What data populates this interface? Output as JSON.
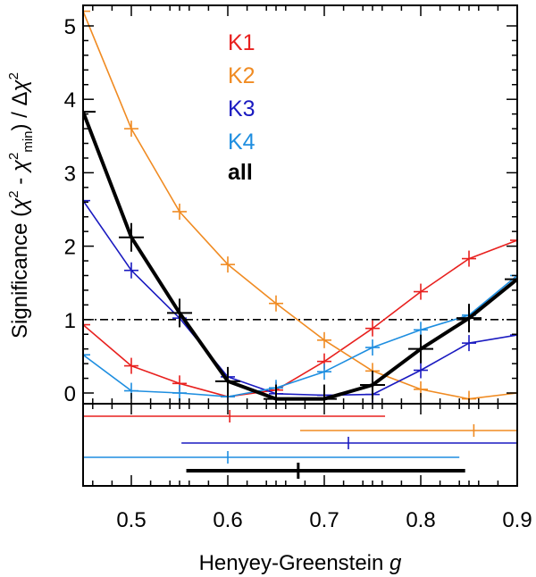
{
  "chart_data": {
    "type": "line",
    "xlabel": "Henyey-Greenstein",
    "xlabel_italic": "g",
    "ylabel": {
      "prefix": "Significance (",
      "chi1": "χ",
      "sup1": "2",
      "minus": " - ",
      "chi2": "χ",
      "sup2": "2",
      "sub": "min",
      "mid": ") / Δ",
      "chi3": "χ",
      "sup3": "2"
    },
    "xlim": [
      0.45,
      0.9
    ],
    "ylim": [
      -0.1,
      5.2
    ],
    "x_ticks": [
      {
        "value": 0.5,
        "label": "0.5"
      },
      {
        "value": 0.6,
        "label": "0.6"
      },
      {
        "value": 0.7,
        "label": "0.7"
      },
      {
        "value": 0.8,
        "label": "0.8"
      },
      {
        "value": 0.9,
        "label": "0.9"
      }
    ],
    "y_ticks": [
      {
        "value": 0,
        "label": "0"
      },
      {
        "value": 1,
        "label": "1"
      },
      {
        "value": 2,
        "label": "2"
      },
      {
        "value": 3,
        "label": "3"
      },
      {
        "value": 4,
        "label": "4"
      },
      {
        "value": 5,
        "label": "5"
      }
    ],
    "threshold": 1,
    "series": [
      {
        "name": "K1",
        "color": "#e8201e",
        "bold": false,
        "x": [
          0.45,
          0.5,
          0.55,
          0.6,
          0.65,
          0.7,
          0.75,
          0.8,
          0.85,
          0.9
        ],
        "y": [
          0.93,
          0.37,
          0.13,
          -0.05,
          0.04,
          0.43,
          0.88,
          1.38,
          1.83,
          2.08
        ]
      },
      {
        "name": "K2",
        "color": "#f08b22",
        "bold": false,
        "x": [
          0.45,
          0.5,
          0.55,
          0.6,
          0.65,
          0.7,
          0.75,
          0.8,
          0.85,
          0.9
        ],
        "y": [
          5.2,
          3.6,
          2.47,
          1.75,
          1.22,
          0.72,
          0.3,
          0.05,
          -0.08,
          0.0
        ]
      },
      {
        "name": "K3",
        "color": "#1a1ac0",
        "bold": false,
        "x": [
          0.45,
          0.5,
          0.55,
          0.6,
          0.65,
          0.7,
          0.75,
          0.8,
          0.85,
          0.9
        ],
        "y": [
          2.62,
          1.67,
          1.02,
          0.22,
          -0.01,
          -0.03,
          -0.02,
          0.31,
          0.68,
          0.79
        ]
      },
      {
        "name": "K4",
        "color": "#1e8ee0",
        "bold": false,
        "x": [
          0.45,
          0.5,
          0.55,
          0.6,
          0.65,
          0.7,
          0.75,
          0.8,
          0.85,
          0.9
        ],
        "y": [
          0.52,
          0.03,
          0.0,
          -0.05,
          0.07,
          0.29,
          0.62,
          0.86,
          1.06,
          1.6
        ]
      },
      {
        "name": "all",
        "color": "#000000",
        "bold": true,
        "x": [
          0.45,
          0.5,
          0.55,
          0.6,
          0.65,
          0.7,
          0.75,
          0.8,
          0.85,
          0.9
        ],
        "y": [
          3.83,
          2.12,
          1.09,
          0.16,
          -0.08,
          -0.08,
          0.11,
          0.6,
          1.02,
          1.55
        ]
      }
    ],
    "confidence_intervals": [
      {
        "name": "K1",
        "color": "#e8201e",
        "best": 0.602,
        "low": 0.45,
        "high": 0.763,
        "bold": false
      },
      {
        "name": "K2",
        "color": "#f08b22",
        "best": 0.855,
        "low": 0.675,
        "high": 0.9,
        "bold": false
      },
      {
        "name": "K3",
        "color": "#1a1ac0",
        "best": 0.725,
        "low": 0.552,
        "high": 0.9,
        "bold": false
      },
      {
        "name": "K4",
        "color": "#1e8ee0",
        "best": 0.6,
        "low": 0.45,
        "high": 0.84,
        "bold": false
      },
      {
        "name": "all",
        "color": "#000000",
        "best": 0.673,
        "low": 0.557,
        "high": 0.846,
        "bold": true
      }
    ],
    "legend_position": "top-center"
  }
}
